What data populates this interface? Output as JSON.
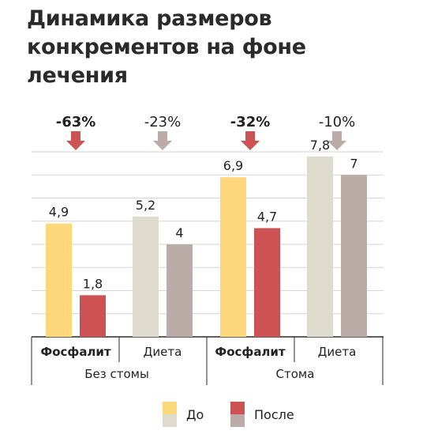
{
  "title": "Динамика размеров\nконкрементов на фоне\nлечения",
  "chart_data": {
    "type": "bar",
    "ylim": [
      0,
      8
    ],
    "grid": true,
    "groups": [
      {
        "label": "Без стомы",
        "subgroups": [
          {
            "label": "Фосфалит",
            "bold": true,
            "before": 4.9,
            "after": 1.8,
            "change": "-63%",
            "change_bold": true
          },
          {
            "label": "Диета",
            "bold": false,
            "before": 5.2,
            "after": 4,
            "change": "-23%",
            "change_bold": false
          }
        ]
      },
      {
        "label": "Стома",
        "subgroups": [
          {
            "label": "Фосфалит",
            "bold": true,
            "before": 6.9,
            "after": 4.7,
            "change": "-32%",
            "change_bold": true
          },
          {
            "label": "Диета",
            "bold": false,
            "before": 7.8,
            "after": 7,
            "change": "-10%",
            "change_bold": false
          }
        ]
      }
    ],
    "legend": [
      {
        "name": "До",
        "colors": [
          "#fed77b",
          "#dedbcc"
        ]
      },
      {
        "name": "После",
        "colors": [
          "#cd5254",
          "#bcaca7"
        ]
      }
    ],
    "colors": {
      "before_highlight": "#fed77b",
      "after_highlight": "#cd5254",
      "before_muted": "#dedbcc",
      "after_muted": "#bcaca7",
      "arrow_highlight": "#cd5254",
      "arrow_muted": "#bcaca7",
      "grid": "#d6d6d6",
      "axis": "#2a2a2a"
    }
  }
}
